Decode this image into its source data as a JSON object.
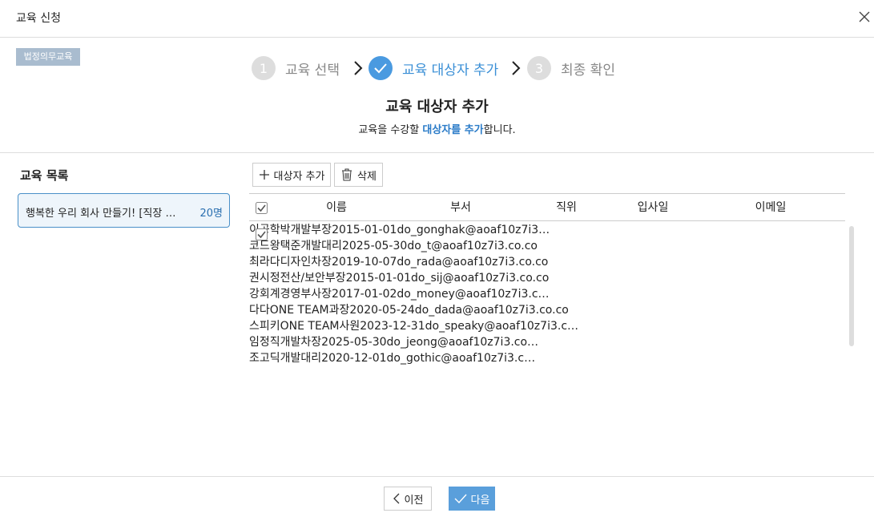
{
  "header": {
    "title": "교육 신청",
    "badge": "법정의무교육"
  },
  "steps": [
    {
      "number": "1",
      "label": "교육 선택"
    },
    {
      "label": "교육 대상자 추가"
    },
    {
      "number": "3",
      "label": "최종 확인"
    }
  ],
  "intro": {
    "title": "교육 대상자 추가",
    "text_before": "교육을 수강할 ",
    "text_bold": "대상자를 추가",
    "text_after": "합니다."
  },
  "course_list": {
    "title": "교육 목록",
    "items": [
      {
        "name": "행복한 우리 회사 만들기! [직장 …",
        "count": "20명"
      }
    ]
  },
  "toolbar": {
    "add": "대상자 추가",
    "delete": "삭제"
  },
  "table": {
    "headers": [
      "이름",
      "부서",
      "직위",
      "입사일",
      "이메일"
    ],
    "rows": [
      [
        "이공학박",
        "개발",
        "부장",
        "2015-01-01",
        "do_gonghak@aoaf10z7i3…"
      ],
      [
        "코드왕택준",
        "개발",
        "대리",
        "2025-05-30",
        "do_t@aoaf10z7i3.co.co"
      ],
      [
        "최라다",
        "디자인",
        "차장",
        "2019-10-07",
        "do_rada@aoaf10z7i3.co.co"
      ],
      [
        "권시정",
        "전산/보안",
        "부장",
        "2015-01-01",
        "do_sij@aoaf10z7i3.co.co"
      ],
      [
        "강회계",
        "경영",
        "부사장",
        "2017-01-02",
        "do_money@aoaf10z7i3.c…"
      ],
      [
        "다다",
        "ONE TEAM",
        "과장",
        "2020-05-24",
        "do_dada@aoaf10z7i3.co.co"
      ],
      [
        "스피키",
        "ONE TEAM",
        "사원",
        "2023-12-31",
        "do_speaky@aoaf10z7i3.c…"
      ],
      [
        "임정직",
        "개발",
        "차장",
        "2025-05-30",
        "do_jeong@aoaf10z7i3.co…"
      ],
      [
        "조고딕",
        "개발",
        "대리",
        "2020-12-01",
        "do_gothic@aoaf10z7i3.c…"
      ]
    ]
  },
  "footer": {
    "prev": "이전",
    "next": "다음"
  }
}
